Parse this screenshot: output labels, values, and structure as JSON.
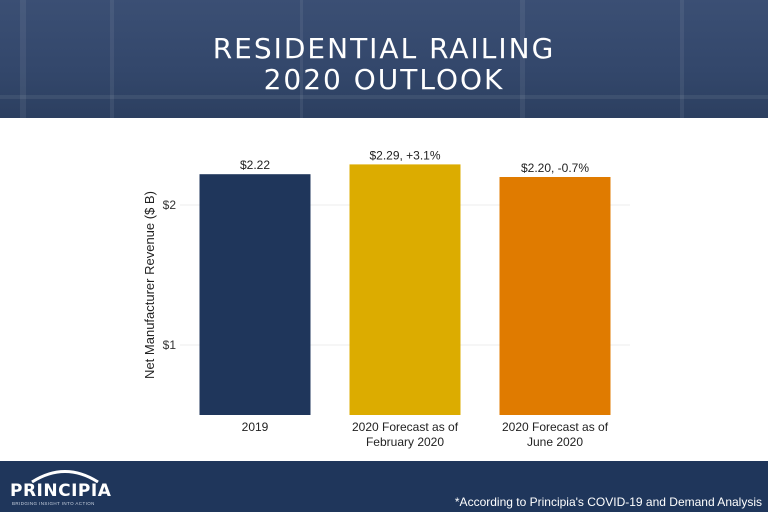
{
  "header": {
    "title_line1": "RESIDENTIAL RAILING",
    "title_line2": "2020 OUTLOOK"
  },
  "chart_data": {
    "type": "bar",
    "categories": [
      "2019",
      "2020 Forecast as of February 2020",
      "2020 Forecast as of June 2020"
    ],
    "category_lines": [
      [
        "2019"
      ],
      [
        "2020 Forecast as of",
        "February 2020"
      ],
      [
        "2020 Forecast as of",
        "June 2020"
      ]
    ],
    "values": [
      2.22,
      2.29,
      2.2
    ],
    "data_labels": [
      "$2.22",
      "$2.29, +3.1%",
      "$2.20, -0.7%"
    ],
    "colors": [
      "#1f365b",
      "#dcac00",
      "#e07b00"
    ],
    "title": "",
    "xlabel": "",
    "ylabel": "Net Manufacturer Revenue ($ B)",
    "yticks": [
      1,
      2
    ],
    "ytick_labels": [
      "$1",
      "$2"
    ],
    "ylim": [
      0.5,
      2.5
    ],
    "grid": true
  },
  "footer": {
    "logo_text": "PRINCIPIA",
    "logo_tagline": "BRIDGING INSIGHT INTO ACTION",
    "footnote": "*According to Principia's COVID-19 and Demand Analysis"
  }
}
